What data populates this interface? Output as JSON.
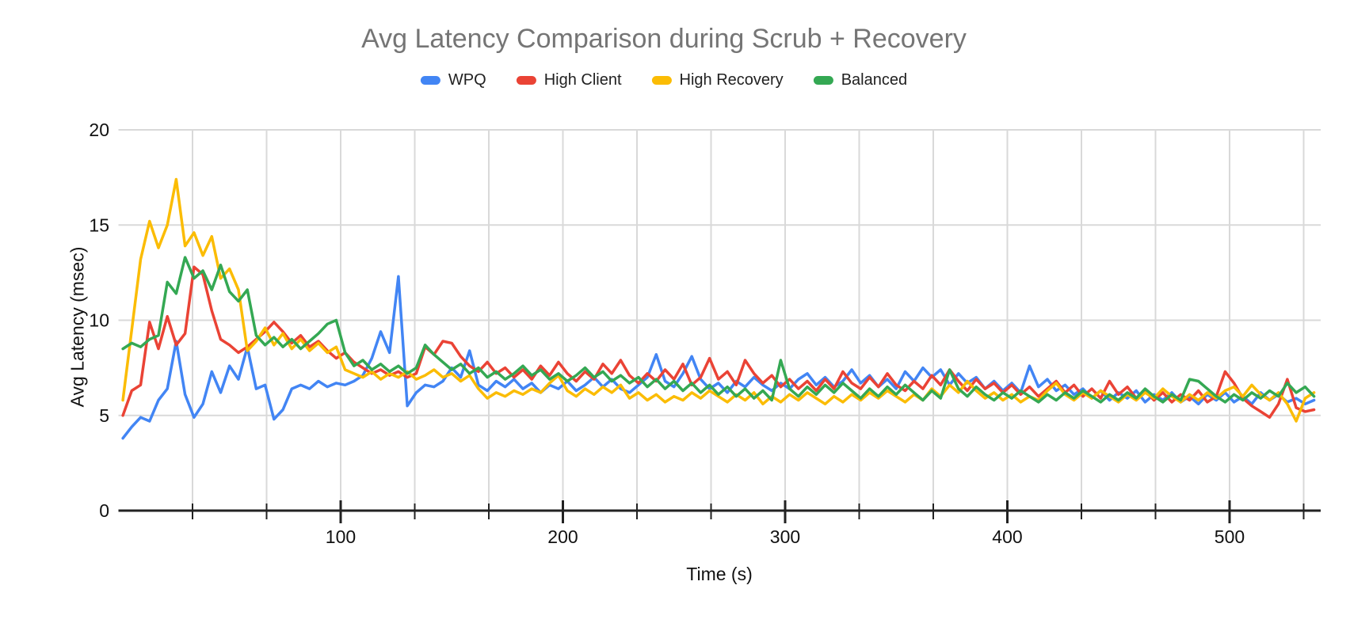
{
  "title": "Avg Latency Comparison during Scrub + Recovery",
  "colors": {
    "title_text": "#757575",
    "gridline": "#d9d9d9",
    "axis_line": "#222222",
    "tick_text": "#111111",
    "wpq": "#4285F4",
    "high_client": "#EA4335",
    "high_recovery": "#FBBC04",
    "balanced": "#34A853"
  },
  "chart_data": {
    "type": "line",
    "title": "Avg Latency Comparison during Scrub + Recovery",
    "xlabel": "Time (s)",
    "ylabel": "Avg Latency (msec)",
    "xlim": [
      0,
      541
    ],
    "ylim": [
      0,
      20
    ],
    "y_ticks": [
      0,
      5,
      10,
      15,
      20
    ],
    "x_major_ticks": [
      100,
      200,
      300,
      400,
      500
    ],
    "x_minor_tick_step": 33.3333,
    "grid": true,
    "legend_position": "top",
    "x_start": 2,
    "x_step": 4,
    "series": [
      {
        "name": "WPQ",
        "color": "#4285F4",
        "values": [
          3.8,
          4.4,
          4.9,
          4.7,
          5.8,
          6.4,
          8.9,
          6.1,
          4.9,
          5.6,
          7.3,
          6.2,
          7.6,
          6.9,
          8.6,
          6.4,
          6.6,
          4.8,
          5.3,
          6.4,
          6.6,
          6.4,
          6.8,
          6.5,
          6.7,
          6.6,
          6.8,
          7.1,
          8.0,
          9.4,
          8.3,
          12.3,
          5.5,
          6.2,
          6.6,
          6.5,
          6.8,
          7.5,
          7.0,
          8.4,
          6.6,
          6.3,
          6.8,
          6.5,
          6.9,
          6.4,
          6.7,
          6.2,
          6.6,
          6.4,
          6.8,
          6.3,
          6.6,
          7.0,
          6.5,
          6.9,
          6.4,
          6.2,
          6.6,
          7.0,
          8.2,
          6.8,
          6.5,
          7.2,
          8.1,
          6.9,
          6.4,
          6.7,
          6.2,
          6.8,
          6.5,
          7.0,
          6.6,
          6.3,
          6.7,
          6.4,
          6.9,
          7.2,
          6.6,
          7.0,
          6.5,
          6.8,
          7.4,
          6.7,
          7.1,
          6.5,
          6.9,
          6.4,
          7.3,
          6.8,
          7.5,
          7.0,
          7.4,
          6.6,
          7.2,
          6.7,
          7.0,
          6.4,
          6.8,
          6.3,
          6.7,
          6.2,
          7.6,
          6.5,
          6.9,
          6.3,
          6.6,
          6.1,
          6.4,
          5.9,
          6.3,
          5.8,
          6.2,
          5.9,
          6.3,
          5.7,
          6.1,
          5.8,
          6.2,
          5.7,
          6.0,
          5.6,
          6.1,
          5.8,
          6.2,
          5.7,
          6.0,
          5.6,
          6.2,
          5.8,
          6.1,
          5.7,
          5.9,
          5.6,
          5.8
        ]
      },
      {
        "name": "High Client",
        "color": "#EA4335",
        "values": [
          5.0,
          6.3,
          6.6,
          9.9,
          8.5,
          10.2,
          8.7,
          9.3,
          12.8,
          12.4,
          10.5,
          9.0,
          8.7,
          8.3,
          8.6,
          9.0,
          9.4,
          9.9,
          9.4,
          8.8,
          9.2,
          8.6,
          8.9,
          8.4,
          8.0,
          8.3,
          7.8,
          7.5,
          7.2,
          7.4,
          7.1,
          7.3,
          7.0,
          7.2,
          8.6,
          8.2,
          8.9,
          8.8,
          8.1,
          7.6,
          7.3,
          7.8,
          7.2,
          7.5,
          7.0,
          7.4,
          6.9,
          7.6,
          7.1,
          7.8,
          7.2,
          6.8,
          7.3,
          6.9,
          7.7,
          7.2,
          7.9,
          7.1,
          6.7,
          7.2,
          6.8,
          7.4,
          6.9,
          7.7,
          6.6,
          7.0,
          8.0,
          6.9,
          7.3,
          6.6,
          7.9,
          7.2,
          6.7,
          7.1,
          6.5,
          6.9,
          6.4,
          6.8,
          6.3,
          6.9,
          6.4,
          7.3,
          6.7,
          6.4,
          7.0,
          6.5,
          7.2,
          6.6,
          6.3,
          6.8,
          6.4,
          7.1,
          6.6,
          7.4,
          6.8,
          6.3,
          6.9,
          6.4,
          6.7,
          6.2,
          6.6,
          6.1,
          6.5,
          6.0,
          6.4,
          6.8,
          6.2,
          6.6,
          6.0,
          6.4,
          5.9,
          6.8,
          6.1,
          6.5,
          5.9,
          6.3,
          5.8,
          6.2,
          5.7,
          6.1,
          5.8,
          6.3,
          5.7,
          6.0,
          7.3,
          6.7,
          5.9,
          5.5,
          5.2,
          4.9,
          5.6,
          6.9,
          5.4,
          5.2,
          5.3
        ]
      },
      {
        "name": "High Recovery",
        "color": "#FBBC04",
        "values": [
          5.8,
          9.5,
          13.2,
          15.2,
          13.8,
          15.0,
          17.4,
          13.9,
          14.6,
          13.4,
          14.4,
          12.2,
          12.7,
          11.6,
          8.4,
          8.9,
          9.6,
          8.7,
          9.3,
          8.5,
          9.0,
          8.4,
          8.8,
          8.3,
          8.6,
          7.4,
          7.2,
          7.0,
          7.3,
          6.9,
          7.2,
          7.0,
          7.3,
          6.9,
          7.1,
          7.4,
          7.0,
          7.2,
          6.8,
          7.1,
          6.4,
          5.9,
          6.2,
          6.0,
          6.3,
          6.1,
          6.4,
          6.2,
          6.7,
          7.1,
          6.3,
          6.0,
          6.4,
          6.1,
          6.5,
          6.2,
          6.6,
          5.9,
          6.2,
          5.8,
          6.1,
          5.7,
          6.0,
          5.8,
          6.2,
          5.9,
          6.3,
          6.0,
          5.7,
          6.1,
          5.8,
          6.2,
          5.6,
          6.0,
          5.7,
          6.1,
          5.8,
          6.2,
          5.9,
          5.6,
          6.0,
          5.7,
          6.1,
          5.8,
          6.2,
          5.9,
          6.3,
          6.0,
          5.7,
          6.1,
          5.8,
          6.4,
          6.0,
          6.6,
          6.2,
          6.8,
          6.3,
          5.9,
          6.2,
          5.8,
          6.1,
          5.7,
          6.0,
          5.8,
          6.3,
          6.7,
          6.1,
          5.8,
          6.2,
          5.9,
          6.3,
          6.0,
          5.7,
          6.1,
          5.8,
          6.2,
          5.9,
          6.4,
          6.0,
          5.7,
          6.1,
          5.8,
          6.2,
          5.9,
          6.3,
          6.5,
          6.0,
          6.6,
          6.1,
          5.8,
          6.2,
          5.6,
          4.7,
          5.9,
          6.2
        ]
      },
      {
        "name": "Balanced",
        "color": "#34A853",
        "values": [
          8.5,
          8.8,
          8.6,
          9.0,
          9.2,
          12.0,
          11.4,
          13.3,
          12.2,
          12.6,
          11.6,
          12.9,
          11.5,
          11.0,
          11.6,
          9.2,
          8.7,
          9.1,
          8.6,
          9.0,
          8.5,
          8.9,
          9.3,
          9.8,
          10.0,
          8.3,
          7.6,
          7.9,
          7.4,
          7.7,
          7.3,
          7.6,
          7.2,
          7.5,
          8.7,
          8.2,
          7.8,
          7.4,
          7.7,
          7.2,
          7.5,
          7.0,
          7.3,
          6.9,
          7.2,
          7.6,
          7.1,
          7.4,
          6.9,
          7.2,
          6.8,
          7.1,
          7.5,
          7.0,
          7.3,
          6.8,
          7.1,
          6.7,
          7.0,
          6.5,
          6.9,
          6.4,
          6.8,
          6.3,
          6.7,
          6.2,
          6.6,
          6.1,
          6.5,
          6.0,
          6.4,
          5.9,
          6.3,
          5.8,
          7.9,
          6.4,
          6.0,
          6.5,
          6.1,
          6.6,
          6.2,
          6.7,
          6.3,
          5.9,
          6.4,
          6.0,
          6.5,
          6.1,
          6.6,
          6.2,
          5.8,
          6.3,
          5.9,
          7.4,
          6.4,
          6.0,
          6.5,
          6.1,
          5.8,
          6.2,
          5.9,
          6.3,
          6.0,
          5.7,
          6.1,
          5.8,
          6.2,
          5.9,
          6.3,
          6.0,
          5.7,
          6.1,
          5.8,
          6.2,
          5.9,
          6.4,
          6.0,
          5.7,
          6.1,
          5.8,
          6.9,
          6.8,
          6.4,
          6.0,
          5.7,
          6.1,
          5.8,
          6.2,
          5.9,
          6.3,
          6.0,
          6.7,
          6.2,
          6.5,
          6.0
        ]
      }
    ]
  }
}
